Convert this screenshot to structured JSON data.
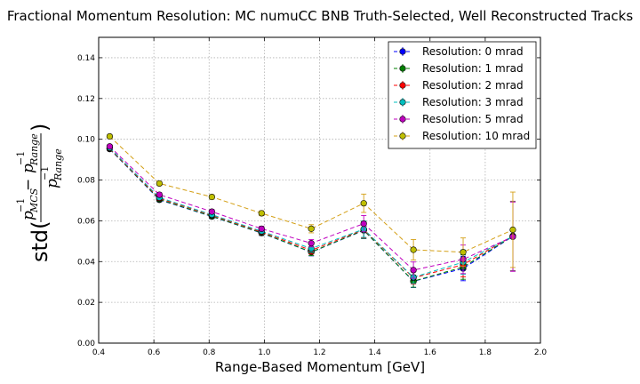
{
  "chart_data": {
    "type": "line",
    "title": "Fractional Momentum Resolution: MC numuCC BNB Truth-Selected, Well Reconstructed Tracks",
    "xlabel": "Range-Based Momentum [GeV]",
    "ylabel": {
      "prefix": "std(",
      "numerator_a": "p",
      "numerator_a_sup": "−1",
      "numerator_a_sub": "MCS",
      "numerator_op": " − ",
      "numerator_b": "p",
      "numerator_b_sup": "−1",
      "numerator_b_sub": "Range",
      "denominator": "p",
      "denominator_sup": "−1",
      "denominator_sub": "Range",
      "suffix": ")"
    },
    "xlim": [
      0.4,
      2.0
    ],
    "ylim": [
      0.0,
      0.15
    ],
    "xticks": [
      "0.4",
      "0.6",
      "0.8",
      "1.0",
      "1.2",
      "1.4",
      "1.6",
      "1.8",
      "2.0"
    ],
    "xtick_values": [
      0.4,
      0.6,
      0.8,
      1.0,
      1.2,
      1.4,
      1.6,
      1.8,
      2.0
    ],
    "yticks": [
      "0.00",
      "0.02",
      "0.04",
      "0.06",
      "0.08",
      "0.10",
      "0.12",
      "0.14"
    ],
    "ytick_values": [
      0.0,
      0.02,
      0.04,
      0.06,
      0.08,
      0.1,
      0.12,
      0.14
    ],
    "grid": true,
    "legend_position": "top-right",
    "x": [
      0.44,
      0.62,
      0.81,
      0.99,
      1.17,
      1.36,
      1.54,
      1.72,
      1.9
    ],
    "series": [
      {
        "name": "Resolution: 0 mrad",
        "color": "#0000ff",
        "values": [
          0.0952,
          0.0703,
          0.0621,
          0.054,
          0.0446,
          0.0553,
          0.0303,
          0.0366,
          0.0524
        ],
        "errors": [
          0.0008,
          0.001,
          0.001,
          0.0012,
          0.0018,
          0.004,
          0.003,
          0.006,
          0.017
        ]
      },
      {
        "name": "Resolution: 1 mrad",
        "color": "#007f00",
        "values": [
          0.0953,
          0.0705,
          0.0622,
          0.0541,
          0.0447,
          0.0554,
          0.0304,
          0.0373,
          0.0525
        ],
        "errors": [
          0.0008,
          0.001,
          0.001,
          0.0012,
          0.0018,
          0.004,
          0.003,
          0.006,
          0.017
        ]
      },
      {
        "name": "Resolution: 2 mrad",
        "color": "#ff0000",
        "values": [
          0.0955,
          0.071,
          0.0627,
          0.0545,
          0.0455,
          0.0557,
          0.032,
          0.0385,
          0.0526
        ],
        "errors": [
          0.0008,
          0.001,
          0.001,
          0.0012,
          0.0018,
          0.004,
          0.003,
          0.006,
          0.017
        ]
      },
      {
        "name": "Resolution: 3 mrad",
        "color": "#00bfbf",
        "values": [
          0.0958,
          0.0714,
          0.063,
          0.0549,
          0.0464,
          0.0559,
          0.0323,
          0.0397,
          0.0524
        ],
        "errors": [
          0.0008,
          0.001,
          0.001,
          0.0012,
          0.0018,
          0.004,
          0.003,
          0.006,
          0.017
        ]
      },
      {
        "name": "Resolution: 5 mrad",
        "color": "#bf00bf",
        "values": [
          0.0965,
          0.0728,
          0.0645,
          0.0561,
          0.049,
          0.0586,
          0.0358,
          0.0411,
          0.0522
        ],
        "errors": [
          0.0008,
          0.001,
          0.001,
          0.0012,
          0.0018,
          0.004,
          0.004,
          0.007,
          0.017
        ]
      },
      {
        "name": "Resolution: 10 mrad",
        "color": "#bfbf00",
        "line_color": "#d4a017",
        "values": [
          0.1014,
          0.0783,
          0.0717,
          0.0637,
          0.0561,
          0.0686,
          0.0458,
          0.0446,
          0.0556
        ],
        "errors": [
          0.0008,
          0.001,
          0.001,
          0.0012,
          0.002,
          0.0045,
          0.005,
          0.007,
          0.0185
        ]
      }
    ]
  }
}
